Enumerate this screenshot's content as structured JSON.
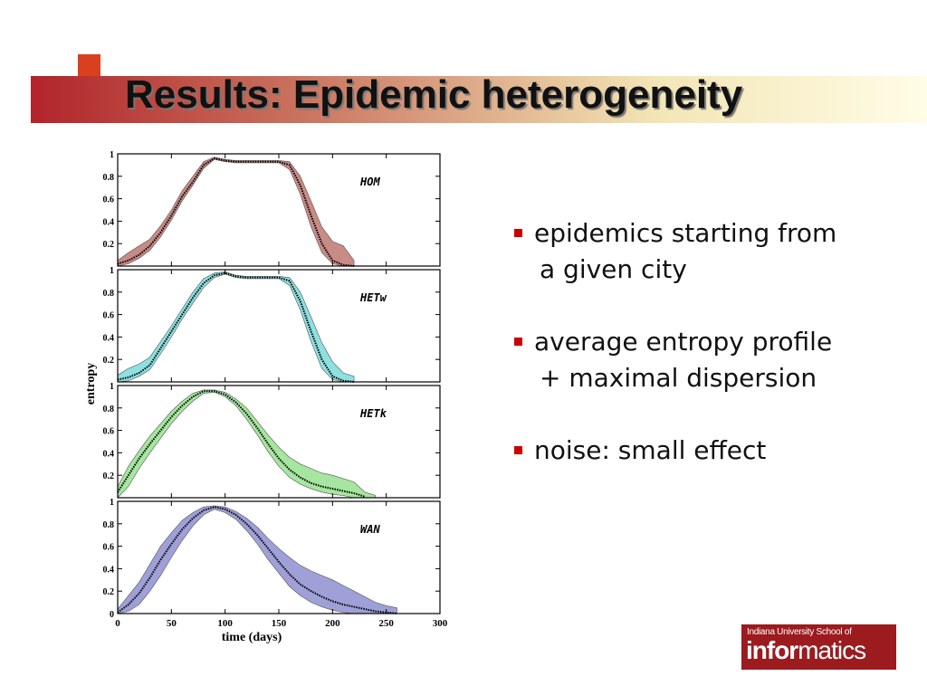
{
  "title": "Results: Epidemic heterogeneity",
  "ylabel": "entropy",
  "bullets": [
    [
      "epidemics starting from",
      "a given city"
    ],
    [
      "average entropy profile",
      "+ maximal dispersion"
    ],
    [
      "noise: small effect"
    ]
  ],
  "logo": {
    "line1": "Indiana University School of",
    "bold": "infor",
    "rest": "matics"
  },
  "chart_data": [
    {
      "type": "line",
      "label": "HOM",
      "xlim": [
        0,
        300
      ],
      "ylim": [
        0,
        1
      ],
      "xticks": [
        0,
        50,
        100,
        150,
        200,
        250,
        300
      ],
      "yticks": [
        0.2,
        0.4,
        0.6,
        0.8,
        1
      ],
      "show_xtick_labels": false,
      "x": [
        0,
        10,
        20,
        30,
        40,
        50,
        60,
        70,
        80,
        90,
        100,
        110,
        120,
        130,
        140,
        150,
        160,
        170,
        180,
        190,
        200,
        210,
        220,
        230,
        240,
        250,
        260,
        270,
        280,
        290,
        300
      ],
      "series": [
        {
          "color": "#000000",
          "values": [
            0.02,
            0.05,
            0.1,
            0.18,
            0.3,
            0.45,
            0.62,
            0.75,
            0.9,
            0.96,
            0.94,
            0.93,
            0.93,
            0.93,
            0.93,
            0.93,
            0.9,
            0.72,
            0.45,
            0.2,
            0.05,
            0.01,
            0.0,
            null,
            null,
            null,
            null,
            null,
            null,
            null,
            null
          ]
        }
      ],
      "band": {
        "color": "#c98b86",
        "upper": [
          0.05,
          0.12,
          0.18,
          0.24,
          0.36,
          0.5,
          0.67,
          0.8,
          0.93,
          0.97,
          0.95,
          0.94,
          0.94,
          0.94,
          0.94,
          0.94,
          0.93,
          0.8,
          0.58,
          0.35,
          0.22,
          0.18,
          0.05,
          null,
          null,
          null,
          null,
          null,
          null,
          null,
          null
        ],
        "lower": [
          0.0,
          0.02,
          0.07,
          0.14,
          0.26,
          0.41,
          0.58,
          0.72,
          0.87,
          0.95,
          0.93,
          0.92,
          0.92,
          0.92,
          0.92,
          0.92,
          0.86,
          0.64,
          0.35,
          0.12,
          0.02,
          0.0,
          0.0,
          null,
          null,
          null,
          null,
          null,
          null,
          null,
          null
        ]
      }
    },
    {
      "type": "line",
      "label": "HETw",
      "xlim": [
        0,
        300
      ],
      "ylim": [
        0,
        1
      ],
      "xticks": [
        0,
        50,
        100,
        150,
        200,
        250,
        300
      ],
      "yticks": [
        0.2,
        0.4,
        0.6,
        0.8,
        1
      ],
      "show_xtick_labels": false,
      "x": [
        0,
        10,
        20,
        30,
        40,
        50,
        60,
        70,
        80,
        90,
        100,
        110,
        120,
        130,
        140,
        150,
        160,
        170,
        180,
        190,
        200,
        210,
        220,
        230,
        240,
        250,
        260,
        270,
        280,
        290,
        300
      ],
      "series": [
        {
          "color": "#000000",
          "values": [
            0.02,
            0.04,
            0.08,
            0.15,
            0.3,
            0.45,
            0.6,
            0.75,
            0.88,
            0.95,
            0.97,
            0.94,
            0.93,
            0.93,
            0.93,
            0.93,
            0.9,
            0.72,
            0.45,
            0.2,
            0.05,
            0.01,
            0.0,
            null,
            null,
            null,
            null,
            null,
            null,
            null,
            null
          ]
        }
      ],
      "band": {
        "color": "#8fe0e0",
        "upper": [
          0.06,
          0.12,
          0.16,
          0.22,
          0.36,
          0.5,
          0.65,
          0.8,
          0.92,
          0.97,
          0.98,
          0.95,
          0.94,
          0.94,
          0.94,
          0.94,
          0.93,
          0.8,
          0.58,
          0.35,
          0.18,
          0.08,
          0.05,
          null,
          null,
          null,
          null,
          null,
          null,
          null,
          null
        ],
        "lower": [
          0.0,
          0.01,
          0.05,
          0.11,
          0.25,
          0.4,
          0.56,
          0.7,
          0.84,
          0.93,
          0.96,
          0.93,
          0.92,
          0.92,
          0.92,
          0.92,
          0.86,
          0.64,
          0.36,
          0.12,
          0.02,
          0.0,
          0.0,
          null,
          null,
          null,
          null,
          null,
          null,
          null,
          null
        ]
      }
    },
    {
      "type": "line",
      "label": "HETk",
      "xlim": [
        0,
        300
      ],
      "ylim": [
        0,
        1
      ],
      "xticks": [
        0,
        50,
        100,
        150,
        200,
        250,
        300
      ],
      "yticks": [
        0.2,
        0.4,
        0.6,
        0.8,
        1
      ],
      "show_xtick_labels": false,
      "x": [
        0,
        10,
        20,
        30,
        40,
        50,
        60,
        70,
        80,
        90,
        100,
        110,
        120,
        130,
        140,
        150,
        160,
        170,
        180,
        190,
        200,
        210,
        220,
        230,
        240,
        250,
        260,
        270,
        280,
        290,
        300
      ],
      "series": [
        {
          "color": "#000000",
          "values": [
            0.05,
            0.2,
            0.35,
            0.48,
            0.6,
            0.72,
            0.82,
            0.9,
            0.95,
            0.95,
            0.92,
            0.85,
            0.75,
            0.62,
            0.48,
            0.35,
            0.25,
            0.18,
            0.13,
            0.1,
            0.08,
            0.06,
            0.04,
            0.01,
            null,
            null,
            null,
            null,
            null,
            null,
            null
          ]
        }
      ],
      "band": {
        "color": "#a6e6a0",
        "upper": [
          0.1,
          0.28,
          0.42,
          0.55,
          0.66,
          0.77,
          0.86,
          0.93,
          0.96,
          0.96,
          0.94,
          0.88,
          0.8,
          0.68,
          0.56,
          0.45,
          0.36,
          0.3,
          0.26,
          0.22,
          0.2,
          0.17,
          0.14,
          0.05,
          0.02,
          null,
          null,
          null,
          null,
          null,
          null
        ],
        "lower": [
          0.0,
          0.1,
          0.26,
          0.4,
          0.53,
          0.66,
          0.77,
          0.86,
          0.93,
          0.94,
          0.9,
          0.82,
          0.7,
          0.56,
          0.41,
          0.28,
          0.18,
          0.12,
          0.08,
          0.05,
          0.03,
          0.02,
          0.0,
          0.0,
          0.0,
          null,
          null,
          null,
          null,
          null,
          null
        ]
      }
    },
    {
      "type": "line",
      "label": "WAN",
      "xlim": [
        0,
        300
      ],
      "ylim": [
        0,
        1
      ],
      "xticks": [
        0,
        50,
        100,
        150,
        200,
        250,
        300
      ],
      "yticks": [
        0,
        0.2,
        0.4,
        0.6,
        0.8,
        1
      ],
      "show_xtick_labels": true,
      "xlabel": "time (days)",
      "x": [
        0,
        10,
        20,
        30,
        40,
        50,
        60,
        70,
        80,
        90,
        100,
        110,
        120,
        130,
        140,
        150,
        160,
        170,
        180,
        190,
        200,
        210,
        220,
        230,
        240,
        250,
        260,
        270,
        280,
        290,
        300
      ],
      "series": [
        {
          "color": "#000000",
          "values": [
            0.01,
            0.08,
            0.18,
            0.32,
            0.48,
            0.62,
            0.75,
            0.85,
            0.92,
            0.95,
            0.93,
            0.88,
            0.8,
            0.7,
            0.58,
            0.46,
            0.35,
            0.26,
            0.2,
            0.15,
            0.11,
            0.08,
            0.06,
            0.04,
            0.02,
            0.01,
            0.0,
            null,
            null,
            null,
            null
          ]
        }
      ],
      "band": {
        "color": "#9fa0d8",
        "upper": [
          0.04,
          0.16,
          0.28,
          0.44,
          0.6,
          0.72,
          0.83,
          0.9,
          0.95,
          0.96,
          0.95,
          0.91,
          0.85,
          0.77,
          0.67,
          0.58,
          0.5,
          0.43,
          0.38,
          0.34,
          0.3,
          0.25,
          0.2,
          0.15,
          0.1,
          0.07,
          0.05,
          0.03,
          0.01,
          null,
          null
        ],
        "lower": [
          0.0,
          0.02,
          0.08,
          0.2,
          0.34,
          0.5,
          0.65,
          0.78,
          0.88,
          0.93,
          0.9,
          0.84,
          0.74,
          0.62,
          0.48,
          0.36,
          0.24,
          0.16,
          0.1,
          0.06,
          0.03,
          0.01,
          0.0,
          0.0,
          0.0,
          0.0,
          0.0,
          null,
          null,
          null,
          null
        ]
      }
    }
  ]
}
